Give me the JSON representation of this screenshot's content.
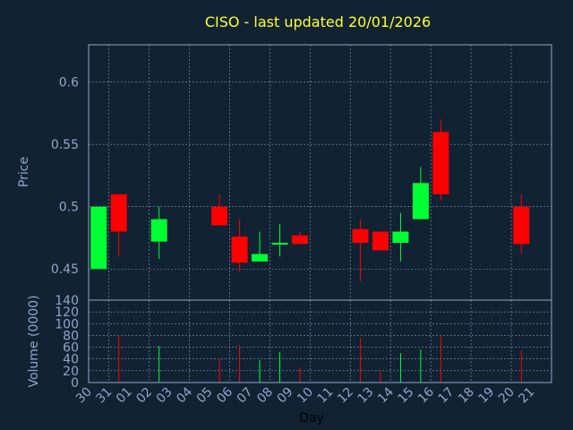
{
  "chart_data": {
    "type": "candlestick",
    "title": "CISO - last updated 20/01/2026",
    "xlabel": "Day",
    "ylabel_price": "Price",
    "ylabel_volume": "Volume (0000)",
    "price_ylim": [
      0.425,
      0.63
    ],
    "price_ticks": [
      "0.45",
      "0.5",
      "0.55",
      "0.6"
    ],
    "volume_ylim": [
      0,
      140
    ],
    "volume_ticks": [
      "0",
      "20",
      "40",
      "60",
      "80",
      "100",
      "120",
      "140"
    ],
    "x_ticks": [
      "30",
      "31",
      "01",
      "02",
      "03",
      "04",
      "05",
      "06",
      "07",
      "08",
      "09",
      "10",
      "11",
      "12",
      "13",
      "14",
      "15",
      "16",
      "17",
      "18",
      "19",
      "20",
      "21"
    ],
    "up_color": "#00ff33",
    "down_color": "#ff0000",
    "candles": [
      {
        "day": "30",
        "open": 0.45,
        "high": 0.5,
        "low": 0.45,
        "close": 0.5,
        "volume": 0
      },
      {
        "day": "31",
        "open": 0.51,
        "high": 0.51,
        "low": 0.46,
        "close": 0.48,
        "volume": 80
      },
      {
        "day": "02",
        "open": 0.472,
        "high": 0.5,
        "low": 0.458,
        "close": 0.49,
        "volume": 62
      },
      {
        "day": "05",
        "open": 0.5,
        "high": 0.51,
        "low": 0.485,
        "close": 0.485,
        "volume": 40
      },
      {
        "day": "06",
        "open": 0.476,
        "high": 0.49,
        "low": 0.448,
        "close": 0.455,
        "volume": 64
      },
      {
        "day": "07",
        "open": 0.456,
        "high": 0.48,
        "low": 0.456,
        "close": 0.462,
        "volume": 38
      },
      {
        "day": "08",
        "open": 0.47,
        "high": 0.486,
        "low": 0.46,
        "close": 0.471,
        "volume": 52
      },
      {
        "day": "09",
        "open": 0.477,
        "high": 0.48,
        "low": 0.47,
        "close": 0.47,
        "volume": 26
      },
      {
        "day": "12",
        "open": 0.482,
        "high": 0.49,
        "low": 0.44,
        "close": 0.471,
        "volume": 76
      },
      {
        "day": "13",
        "open": 0.48,
        "high": 0.48,
        "low": 0.465,
        "close": 0.465,
        "volume": 20
      },
      {
        "day": "14",
        "open": 0.471,
        "high": 0.495,
        "low": 0.456,
        "close": 0.48,
        "volume": 50
      },
      {
        "day": "15",
        "open": 0.49,
        "high": 0.532,
        "low": 0.49,
        "close": 0.519,
        "volume": 56
      },
      {
        "day": "16",
        "open": 0.56,
        "high": 0.57,
        "low": 0.505,
        "close": 0.51,
        "volume": 80
      },
      {
        "day": "20",
        "open": 0.5,
        "high": 0.51,
        "low": 0.462,
        "close": 0.47,
        "volume": 55
      }
    ]
  }
}
